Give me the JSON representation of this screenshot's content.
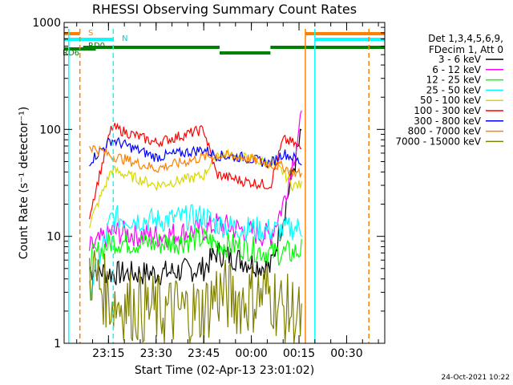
{
  "chart_data": {
    "type": "line",
    "title": "RHESSI Observing Summary Count Rates",
    "xlabel": "Start Time (02-Apr-13 23:01:02)",
    "ylabel": "Count Rate (s⁻¹ detector⁻¹)",
    "y_scale": "log",
    "ylim": [
      1,
      1000
    ],
    "xlim": [
      "23:01:02",
      "00:42:00"
    ],
    "y_ticks": [
      "1",
      "10",
      "100",
      "1000"
    ],
    "x_ticks": [
      "23:15",
      "23:30",
      "23:45",
      "00:00",
      "00:15",
      "00:30"
    ],
    "legend_header": [
      "Det 1,3,4,5,6,9,",
      "FDecim 1, Att 0"
    ],
    "legend_position": "right",
    "series": [
      {
        "name": "3 - 6 keV",
        "color": "#000000",
        "points": [
          [
            "23:09:00",
            5
          ],
          [
            "23:16:00",
            4.5
          ],
          [
            "23:30:00",
            4.5
          ],
          [
            "23:45:00",
            5
          ],
          [
            "23:49:00",
            7
          ],
          [
            "23:57:00",
            6
          ],
          [
            "00:06:00",
            5
          ],
          [
            "00:10:00",
            15
          ],
          [
            "00:13:00",
            40
          ],
          [
            "00:16:00",
            95
          ]
        ]
      },
      {
        "name": "6 - 12 keV",
        "color": "#ff00ff",
        "points": [
          [
            "23:09:00",
            7.5
          ],
          [
            "23:16:00",
            11
          ],
          [
            "23:30:00",
            10
          ],
          [
            "23:45:00",
            11.5
          ],
          [
            "23:49:00",
            13
          ],
          [
            "23:57:00",
            11.5
          ],
          [
            "00:06:00",
            10
          ],
          [
            "00:10:00",
            20
          ],
          [
            "00:13:00",
            50
          ],
          [
            "00:16:00",
            130
          ]
        ]
      },
      {
        "name": "12 - 25 keV",
        "color": "#00ff00",
        "points": [
          [
            "23:09:00",
            6
          ],
          [
            "23:16:00",
            9
          ],
          [
            "23:30:00",
            8.5
          ],
          [
            "23:45:00",
            9.5
          ],
          [
            "23:49:00",
            8.5
          ],
          [
            "23:57:00",
            8
          ],
          [
            "00:06:00",
            7
          ],
          [
            "00:10:00",
            7
          ],
          [
            "00:13:00",
            7
          ],
          [
            "00:16:00",
            7.5
          ]
        ]
      },
      {
        "name": "25 - 50 keV",
        "color": "#00ffff",
        "points": [
          [
            "23:09:00",
            3
          ],
          [
            "23:16:00",
            15
          ],
          [
            "23:30:00",
            14
          ],
          [
            "23:45:00",
            15.5
          ],
          [
            "23:49:00",
            13
          ],
          [
            "23:57:00",
            12
          ],
          [
            "00:06:00",
            11.5
          ],
          [
            "00:10:00",
            11.5
          ],
          [
            "00:13:00",
            12
          ],
          [
            "00:16:00",
            12
          ]
        ]
      },
      {
        "name": "50 - 100 keV",
        "color": "#d8d800",
        "points": [
          [
            "23:09:00",
            13
          ],
          [
            "23:16:00",
            42
          ],
          [
            "23:30:00",
            30
          ],
          [
            "23:45:00",
            37
          ],
          [
            "23:49:00",
            60
          ],
          [
            "23:57:00",
            55
          ],
          [
            "00:06:00",
            48
          ],
          [
            "00:10:00",
            40
          ],
          [
            "00:13:00",
            30
          ],
          [
            "00:16:00",
            30
          ]
        ]
      },
      {
        "name": "100 - 300 keV",
        "color": "#ff0000",
        "points": [
          [
            "23:09:00",
            16
          ],
          [
            "23:16:00",
            105
          ],
          [
            "23:30:00",
            75
          ],
          [
            "23:45:00",
            100
          ],
          [
            "23:49:00",
            38
          ],
          [
            "23:57:00",
            33
          ],
          [
            "00:06:00",
            30
          ],
          [
            "00:10:00",
            80
          ],
          [
            "00:13:00",
            75
          ],
          [
            "00:16:00",
            65
          ]
        ]
      },
      {
        "name": "300 - 800 keV",
        "color": "#0000ff",
        "points": [
          [
            "23:09:00",
            50
          ],
          [
            "23:16:00",
            80
          ],
          [
            "23:30:00",
            55
          ],
          [
            "23:45:00",
            65
          ],
          [
            "23:49:00",
            57
          ],
          [
            "23:57:00",
            55
          ],
          [
            "00:06:00",
            48
          ],
          [
            "00:10:00",
            60
          ],
          [
            "00:13:00",
            55
          ],
          [
            "00:16:00",
            48
          ]
        ]
      },
      {
        "name": "800 - 7000 keV",
        "color": "#ff8000",
        "points": [
          [
            "23:09:00",
            70
          ],
          [
            "23:16:00",
            57
          ],
          [
            "23:30:00",
            43
          ],
          [
            "23:45:00",
            55
          ],
          [
            "23:49:00",
            57
          ],
          [
            "23:57:00",
            55
          ],
          [
            "00:06:00",
            47
          ],
          [
            "00:10:00",
            45
          ],
          [
            "00:13:00",
            40
          ],
          [
            "00:16:00",
            38
          ]
        ]
      },
      {
        "name": "7000 - 15000 keV",
        "color": "#808000",
        "points": [
          [
            "23:09:00",
            5
          ],
          [
            "23:16:00",
            2.5
          ],
          [
            "23:30:00",
            2
          ],
          [
            "23:45:00",
            2
          ],
          [
            "23:49:00",
            3
          ],
          [
            "23:57:00",
            2.5
          ],
          [
            "00:06:00",
            3
          ],
          [
            "00:10:00",
            2
          ],
          [
            "00:13:00",
            2
          ],
          [
            "00:16:00",
            1.5
          ]
        ]
      }
    ],
    "flags": [
      {
        "label": "S",
        "color": "#ff8000",
        "segments": [
          [
            "23:01:02",
            "23:06:00"
          ],
          [
            "00:17:00",
            "00:42:00"
          ]
        ]
      },
      {
        "label": "N",
        "color": "#00ffff",
        "segments": [
          [
            "23:01:02",
            "23:16:30"
          ],
          [
            "00:20:00",
            "00:42:00"
          ]
        ]
      },
      {
        "label": "RD0",
        "color": "#008000",
        "segments": [
          [
            "23:07:00",
            "23:50:00"
          ],
          [
            "00:06:00",
            "00:42:00"
          ]
        ]
      },
      {
        "label": "RD6",
        "color": "#008000",
        "segments": [
          [
            "23:01:02",
            "23:11:00"
          ]
        ]
      },
      {
        "label": "",
        "color": "#008000",
        "segments": [
          [
            "23:50:00",
            "00:06:00"
          ]
        ]
      }
    ],
    "vertical_markers": [
      {
        "time": "23:06:00",
        "color": "#ff8000",
        "style": "dashed"
      },
      {
        "time": "23:16:30",
        "color": "#00ffff",
        "style": "dashed"
      },
      {
        "time": "00:17:00",
        "color": "#ff8000",
        "style": "solid"
      },
      {
        "time": "00:20:00",
        "color": "#00ffff",
        "style": "solid"
      },
      {
        "time": "00:37:00",
        "color": "#ff8000",
        "style": "dashed"
      },
      {
        "time": "23:02:30",
        "color": "#00ffff",
        "style": "solid"
      }
    ]
  },
  "footer": {
    "date_stamp": "24-Oct-2021 10:22"
  }
}
